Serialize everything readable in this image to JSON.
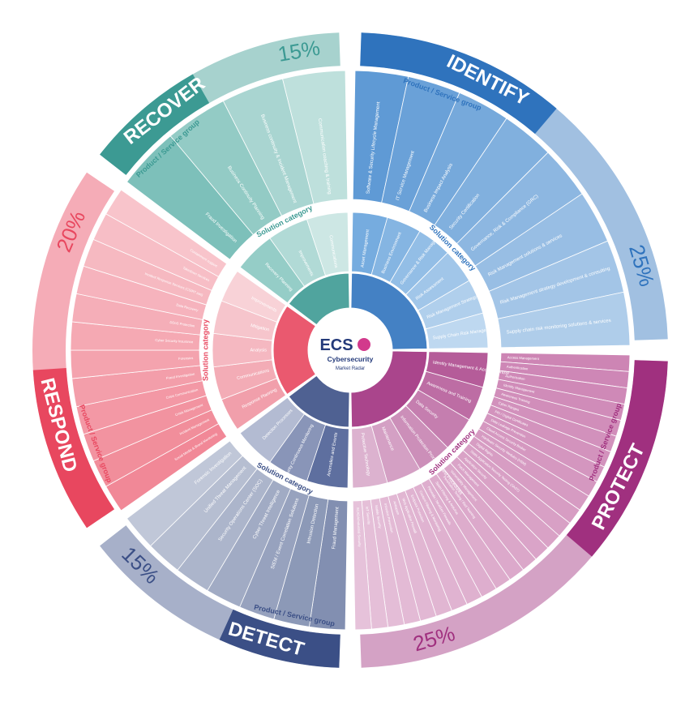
{
  "center": {
    "logo_text": "ECS",
    "title": "Cybersecurity",
    "subtitle": "Market Radar"
  },
  "ring_labels": {
    "product_group": "Product / Service group",
    "solution_category": "Solution category"
  },
  "sections": [
    {
      "key": "identify",
      "name": "IDENTIFY",
      "percent": "25%",
      "colors": {
        "main": "#2f73bd",
        "outer": "#4d8fd0",
        "mid": "#6fa8dd",
        "light": "#a9cbec",
        "text": "#2f73bd"
      },
      "outer_items": [
        "Software & Security Lifecycle Management",
        "IT Service Management",
        "Business Impact Analysis",
        "Security Certification",
        "Governance, Risk & Compliance (GRC)",
        "Risk Management solutions & services",
        "Risk Management strategy development & consulting",
        "Supply chain risk monitoring solutions & services"
      ],
      "inner_items": [
        "Asset Management",
        "Business Environment",
        "Governance & Risk Management",
        "Risk Assessment",
        "Risk Management Strategy",
        "Supply Chain Risk Management"
      ]
    },
    {
      "key": "protect",
      "name": "PROTECT",
      "percent": "25%",
      "colors": {
        "main": "#a0307f",
        "outer": "#c777ac",
        "mid": "#b15394",
        "light": "#e4bcd6",
        "text": "#a0307f"
      },
      "outer_items": [
        "Access Management",
        "Authentication",
        "Authorisation",
        "Identity Management",
        "Awareness Training",
        "Cyber Ranges",
        "PKI / Digital Certificates",
        "Data Leakage Prevention",
        "Cloud Access Security Broker",
        "Hardware Security Modules (HSM)",
        "Digital Rights",
        "Static Application Security Testing (SAST)",
        "Application Security",
        "Patch Management",
        "Vulnerability Management",
        "Penetration Testing / Red Teaming",
        "Spam Filtering & Antivirus",
        "Firewalls / NextGen Firewalls",
        "Content Filtering & Monitoring",
        "Endpoint Protection",
        "Web Application Firewall",
        "Antispam",
        "Intrusion Prevention",
        "Mobile Security",
        "IoT Security",
        "SCADA/Industrial Security"
      ],
      "inner_items": [
        "Identity Management & Access Control",
        "Awareness and Training",
        "Data Security",
        "Information Protection Processes and Procedures",
        "Maintenance",
        "Protective Technology"
      ]
    },
    {
      "key": "detect",
      "name": "DETECT",
      "percent": "15%",
      "colors": {
        "main": "#3b4f86",
        "outer": "#7483a8",
        "mid": "#56679a",
        "light": "#b5bdd4",
        "text": "#3b4f86"
      },
      "outer_items": [
        "Fraud Management",
        "Intrusion Detection",
        "SIEM / Event Correlation Solutions",
        "Cyber Threat Intelligence",
        "Security Operations Center (SOC)",
        "Unified Threat Management",
        "Forensic Investigation"
      ],
      "inner_items": [
        "Anomalies and Events",
        "Security Continuous Monitoring",
        "Detection Processes"
      ]
    },
    {
      "key": "respond",
      "name": "RESPOND",
      "percent": "20%",
      "colors": {
        "main": "#e8475f",
        "outer": "#ef7b8b",
        "mid": "#f09aa7",
        "light": "#f8cdd4",
        "text": "#e8475f"
      },
      "outer_items": [
        "Social Media & Brand Monitoring",
        "Incident Management",
        "Crisis Management",
        "Crisis Communication",
        "Fraud Investigation",
        "Forensics",
        "Cyber Security Insurance",
        "DDoS Protection",
        "Data Recovery",
        "Incident Response Services (CSIRT aas)",
        "Takedown Services",
        "Containment support"
      ],
      "inner_items": [
        "Response Planning",
        "Communications",
        "Analysis",
        "Mitigation",
        "Improvements"
      ]
    },
    {
      "key": "recover",
      "name": "RECOVER",
      "percent": "15%",
      "colors": {
        "main": "#3c9a93",
        "outer": "#6fb9b2",
        "mid": "#8fcac4",
        "light": "#c3e3e0",
        "text": "#3c9a93"
      },
      "outer_items": [
        "Fraud Investigation",
        "Business Continuity Planning",
        "Business continuity & Incident Management",
        "Communication coaching & training"
      ],
      "inner_items": [
        "Recovery Planning",
        "Improvements",
        "Communications"
      ]
    }
  ]
}
